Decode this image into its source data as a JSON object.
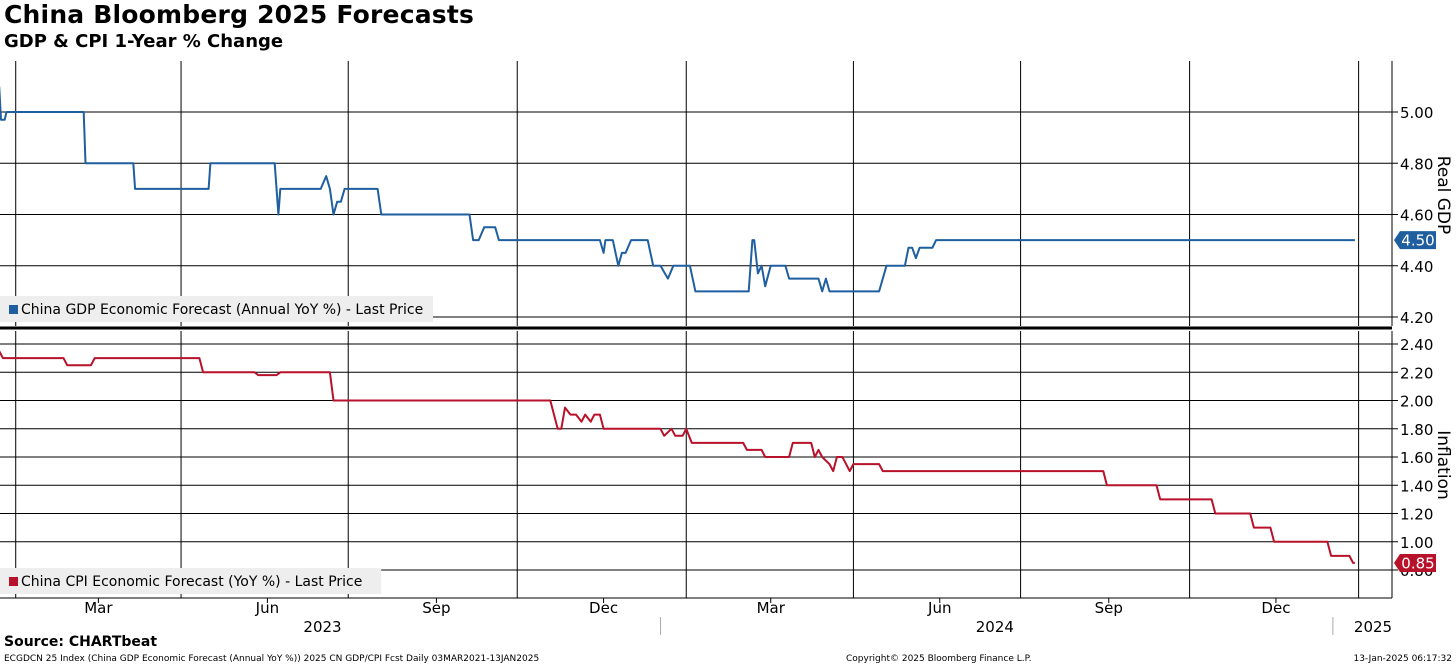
{
  "title": "China Bloomberg 2025 Forecasts",
  "subtitle": "GDP & CPI 1-Year % Change",
  "source": "Source: CHARTbeat",
  "footer": {
    "left": "ECGDCN 25 Index (China GDP Economic Forecast (Annual YoY %)) 2025 CN GDP/CPI Fcst  Daily 03MAR2021-13JAN2025",
    "center": "Copyright© 2025 Bloomberg Finance L.P.",
    "right": "13-Jan-2025 06:17:32"
  },
  "colors": {
    "gdp": "#1f5fa0",
    "cpi": "#b8112a",
    "grid": "#000000"
  },
  "chart_data": [
    {
      "type": "line",
      "ylabel": "Real GDP",
      "ylim": [
        4.15,
        5.2
      ],
      "yticks": [
        4.2,
        4.4,
        4.6,
        4.8,
        5.0
      ],
      "ytick_labels": [
        "4.20",
        "4.40",
        "4.60",
        "4.80",
        "5.00"
      ],
      "grid": true,
      "legend_position": "bottom-left",
      "last_value_label": "4.50",
      "series": [
        {
          "name": "China GDP Economic Forecast (Annual YoY %) - Last Price",
          "points": [
            [
              "2023-01-06",
              5.1
            ],
            [
              "2023-01-07",
              4.97
            ],
            [
              "2023-01-09",
              4.97
            ],
            [
              "2023-01-10",
              5.0
            ],
            [
              "2023-02-21",
              5.0
            ],
            [
              "2023-02-22",
              4.8
            ],
            [
              "2023-03-20",
              4.8
            ],
            [
              "2023-03-21",
              4.7
            ],
            [
              "2023-04-30",
              4.7
            ],
            [
              "2023-05-01",
              4.8
            ],
            [
              "2023-06-05",
              4.8
            ],
            [
              "2023-06-07",
              4.6
            ],
            [
              "2023-06-08",
              4.7
            ],
            [
              "2023-06-30",
              4.7
            ],
            [
              "2023-07-03",
              4.75
            ],
            [
              "2023-07-05",
              4.7
            ],
            [
              "2023-07-07",
              4.6
            ],
            [
              "2023-07-09",
              4.65
            ],
            [
              "2023-07-11",
              4.65
            ],
            [
              "2023-07-13",
              4.7
            ],
            [
              "2023-07-31",
              4.7
            ],
            [
              "2023-08-02",
              4.6
            ],
            [
              "2023-09-19",
              4.6
            ],
            [
              "2023-09-21",
              4.5
            ],
            [
              "2023-09-24",
              4.5
            ],
            [
              "2023-09-27",
              4.55
            ],
            [
              "2023-10-03",
              4.55
            ],
            [
              "2023-10-05",
              4.5
            ],
            [
              "2023-11-29",
              4.5
            ],
            [
              "2023-12-01",
              4.45
            ],
            [
              "2023-12-02",
              4.5
            ],
            [
              "2023-12-06",
              4.5
            ],
            [
              "2023-12-09",
              4.4
            ],
            [
              "2023-12-11",
              4.45
            ],
            [
              "2023-12-13",
              4.45
            ],
            [
              "2023-12-16",
              4.5
            ],
            [
              "2023-12-25",
              4.5
            ],
            [
              "2023-12-28",
              4.4
            ],
            [
              "2024-01-01",
              4.4
            ],
            [
              "2024-01-05",
              4.35
            ],
            [
              "2024-01-08",
              4.4
            ],
            [
              "2024-01-17",
              4.4
            ],
            [
              "2024-01-20",
              4.3
            ],
            [
              "2024-02-18",
              4.3
            ],
            [
              "2024-02-20",
              4.5
            ],
            [
              "2024-02-21",
              4.5
            ],
            [
              "2024-02-23",
              4.37
            ],
            [
              "2024-02-25",
              4.4
            ],
            [
              "2024-02-27",
              4.32
            ],
            [
              "2024-03-01",
              4.4
            ],
            [
              "2024-03-09",
              4.4
            ],
            [
              "2024-03-11",
              4.35
            ],
            [
              "2024-03-27",
              4.35
            ],
            [
              "2024-03-29",
              4.3
            ],
            [
              "2024-03-31",
              4.35
            ],
            [
              "2024-04-02",
              4.3
            ],
            [
              "2024-04-29",
              4.3
            ],
            [
              "2024-05-03",
              4.4
            ],
            [
              "2024-05-13",
              4.4
            ],
            [
              "2024-05-15",
              4.47
            ],
            [
              "2024-05-17",
              4.47
            ],
            [
              "2024-05-19",
              4.43
            ],
            [
              "2024-05-21",
              4.47
            ],
            [
              "2024-05-28",
              4.47
            ],
            [
              "2024-05-30",
              4.5
            ],
            [
              "2025-01-13",
              4.5
            ]
          ]
        }
      ]
    },
    {
      "type": "line",
      "ylabel": "Inflation",
      "ylim": [
        0.7,
        2.5
      ],
      "yticks": [
        0.8,
        1.0,
        1.2,
        1.4,
        1.6,
        1.8,
        2.0,
        2.2,
        2.4
      ],
      "ytick_labels": [
        "0.80",
        "1.00",
        "1.20",
        "1.40",
        "1.60",
        "1.80",
        "2.00",
        "2.20",
        "2.40"
      ],
      "grid": true,
      "legend_position": "bottom-left",
      "last_value_label": "0.85",
      "series": [
        {
          "name": "China CPI Economic Forecast (YoY %) - Last Price",
          "points": [
            [
              "2023-01-06",
              2.35
            ],
            [
              "2023-01-08",
              2.3
            ],
            [
              "2023-02-10",
              2.3
            ],
            [
              "2023-02-12",
              2.25
            ],
            [
              "2023-02-25",
              2.25
            ],
            [
              "2023-02-27",
              2.3
            ],
            [
              "2023-04-25",
              2.3
            ],
            [
              "2023-04-27",
              2.2
            ],
            [
              "2023-05-25",
              2.2
            ],
            [
              "2023-05-27",
              2.18
            ],
            [
              "2023-06-06",
              2.18
            ],
            [
              "2023-06-08",
              2.2
            ],
            [
              "2023-07-05",
              2.2
            ],
            [
              "2023-07-07",
              2.0
            ],
            [
              "2023-11-02",
              2.0
            ],
            [
              "2023-11-06",
              1.8
            ],
            [
              "2023-11-08",
              1.8
            ],
            [
              "2023-11-10",
              1.95
            ],
            [
              "2023-11-13",
              1.9
            ],
            [
              "2023-11-16",
              1.9
            ],
            [
              "2023-11-19",
              1.85
            ],
            [
              "2023-11-21",
              1.9
            ],
            [
              "2023-11-24",
              1.85
            ],
            [
              "2023-11-26",
              1.9
            ],
            [
              "2023-11-29",
              1.9
            ],
            [
              "2023-12-01",
              1.8
            ],
            [
              "2024-01-01",
              1.8
            ],
            [
              "2024-01-03",
              1.75
            ],
            [
              "2024-01-07",
              1.8
            ],
            [
              "2024-01-09",
              1.75
            ],
            [
              "2024-01-13",
              1.75
            ],
            [
              "2024-01-15",
              1.8
            ],
            [
              "2024-01-18",
              1.7
            ],
            [
              "2024-02-15",
              1.7
            ],
            [
              "2024-02-17",
              1.65
            ],
            [
              "2024-02-25",
              1.65
            ],
            [
              "2024-02-27",
              1.6
            ],
            [
              "2024-03-11",
              1.6
            ],
            [
              "2024-03-13",
              1.7
            ],
            [
              "2024-03-23",
              1.7
            ],
            [
              "2024-03-25",
              1.6
            ],
            [
              "2024-03-27",
              1.65
            ],
            [
              "2024-03-29",
              1.6
            ],
            [
              "2024-04-02",
              1.55
            ],
            [
              "2024-04-04",
              1.5
            ],
            [
              "2024-04-06",
              1.6
            ],
            [
              "2024-04-09",
              1.6
            ],
            [
              "2024-04-11",
              1.55
            ],
            [
              "2024-04-13",
              1.5
            ],
            [
              "2024-04-15",
              1.55
            ],
            [
              "2024-04-29",
              1.55
            ],
            [
              "2024-05-01",
              1.5
            ],
            [
              "2024-08-29",
              1.5
            ],
            [
              "2024-08-31",
              1.4
            ],
            [
              "2024-09-27",
              1.4
            ],
            [
              "2024-09-29",
              1.3
            ],
            [
              "2024-10-27",
              1.3
            ],
            [
              "2024-10-29",
              1.2
            ],
            [
              "2024-11-17",
              1.2
            ],
            [
              "2024-11-19",
              1.1
            ],
            [
              "2024-11-28",
              1.1
            ],
            [
              "2024-11-30",
              1.0
            ],
            [
              "2024-12-29",
              1.0
            ],
            [
              "2024-12-31",
              0.9
            ],
            [
              "2025-01-10",
              0.9
            ],
            [
              "2025-01-12",
              0.85
            ],
            [
              "2025-01-13",
              0.85
            ]
          ]
        }
      ]
    }
  ],
  "x_axis": {
    "month_ticks": [
      {
        "label": "Mar",
        "date": "2023-03-01"
      },
      {
        "label": "Jun",
        "date": "2023-06-01"
      },
      {
        "label": "Sep",
        "date": "2023-09-01"
      },
      {
        "label": "Dec",
        "date": "2023-12-01"
      },
      {
        "label": "Mar",
        "date": "2024-03-01"
      },
      {
        "label": "Jun",
        "date": "2024-06-01"
      },
      {
        "label": "Sep",
        "date": "2024-09-01"
      },
      {
        "label": "Dec",
        "date": "2024-12-01"
      }
    ],
    "years": [
      {
        "label": "2023",
        "date": "2023-07-01"
      },
      {
        "label": "2024",
        "date": "2024-07-01"
      },
      {
        "label": "2025",
        "date": "2025-01-07"
      }
    ],
    "year_separators": [
      "2024-01-01",
      "2025-01-01"
    ],
    "gridlines": [
      "2023-01-15",
      "2023-04-15",
      "2023-07-15",
      "2023-10-15",
      "2024-01-15",
      "2024-04-15",
      "2024-07-15",
      "2024-10-15",
      "2025-01-15"
    ]
  }
}
